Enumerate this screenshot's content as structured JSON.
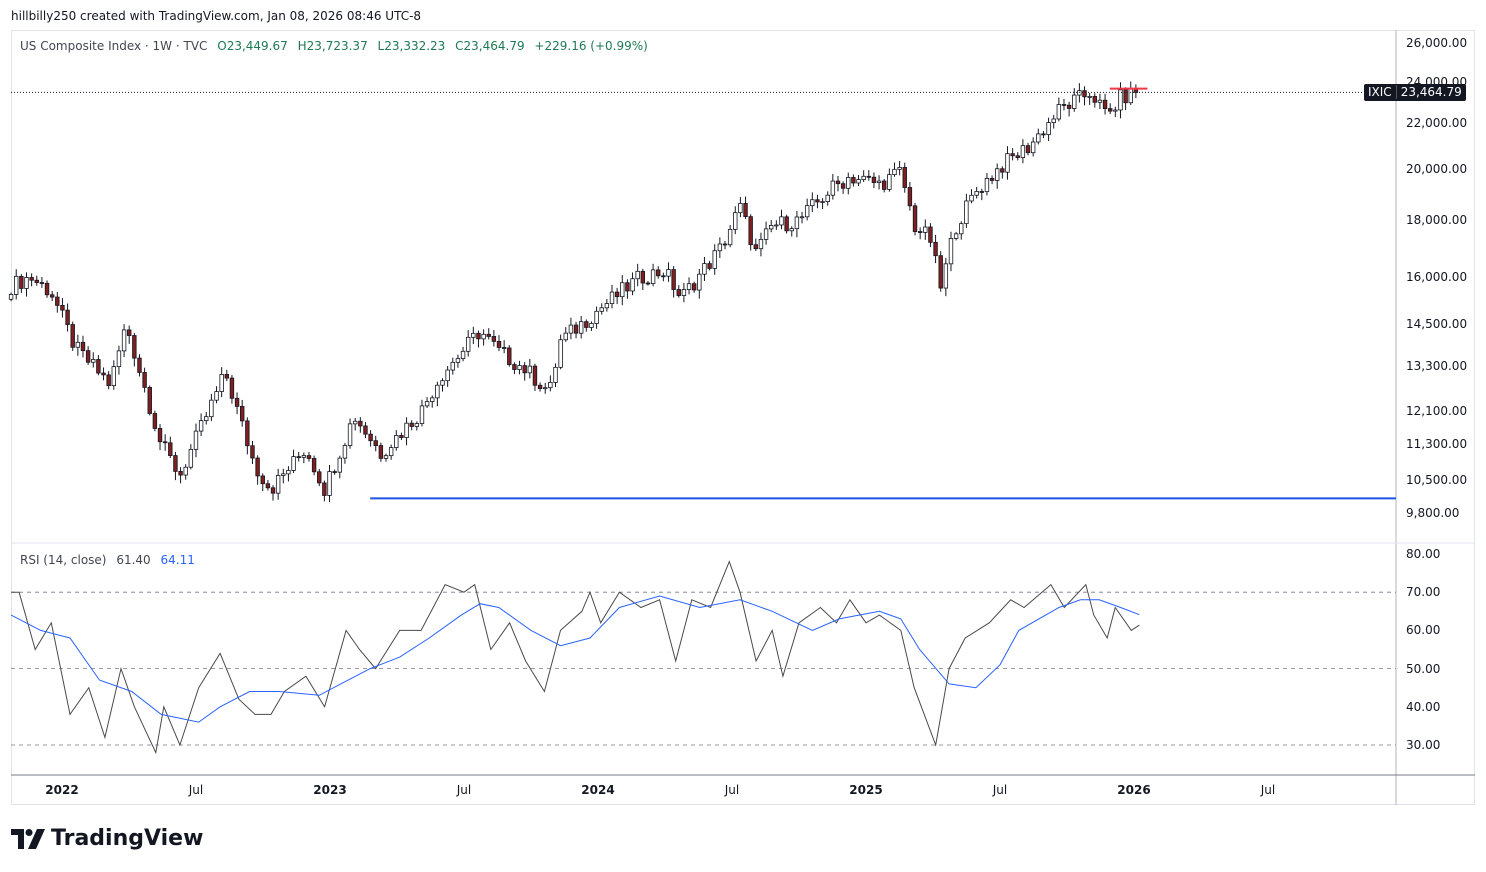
{
  "caption": "hillbilly250 created with TradingView.com, Jan 08, 2026 08:46 UTC-8",
  "legend": {
    "title": "US Composite Index · 1W · TVC",
    "open": "O23,449.67",
    "high": "H23,723.37",
    "low": "L23,332.23",
    "close": "C23,464.79",
    "change": "+229.16 (+0.99%)"
  },
  "price_badge": {
    "symbol": "IXIC",
    "value": "23,464.79"
  },
  "rsi_legend": {
    "label": "RSI (14, close)",
    "rsi": "61.40",
    "ma": "64.11"
  },
  "logo": {
    "text": "TradingView"
  },
  "colors": {
    "up": "#ffffff",
    "down": "#7f1f1f",
    "wick": "#131722",
    "rsi": "#4a4a4a",
    "rsi_ma": "#2962ff",
    "hline": "#1e53e5",
    "red_line": "#f23645"
  },
  "chart_data": [
    {
      "type": "candlestick",
      "title": "US Composite Index · 1W · TVC",
      "scale": "log",
      "ylim": [
        9500,
        26500
      ],
      "xlim": [
        2021.81,
        2027.0
      ],
      "y_ticks": [
        "26,000.00",
        "24,000.00",
        "22,000.00",
        "20,000.00",
        "18,000.00",
        "16,000.00",
        "14,500.00",
        "13,300.00",
        "12,100.00",
        "11,300.00",
        "10,500.00",
        "9,800.00"
      ],
      "y_tick_values": [
        26000,
        24000,
        22000,
        20000,
        18000,
        16000,
        14500,
        13300,
        12100,
        11300,
        10500,
        9800
      ],
      "x_ticks": [
        {
          "label": "2022",
          "t": 2022.0,
          "year": true
        },
        {
          "label": "Jul",
          "t": 2022.5
        },
        {
          "label": "2023",
          "t": 2023.0,
          "year": true
        },
        {
          "label": "Jul",
          "t": 2023.5
        },
        {
          "label": "2024",
          "t": 2024.0,
          "year": true
        },
        {
          "label": "Jul",
          "t": 2024.5
        },
        {
          "label": "2025",
          "t": 2025.0,
          "year": true
        },
        {
          "label": "Jul",
          "t": 2025.5
        },
        {
          "label": "2026",
          "t": 2026.0,
          "year": true
        },
        {
          "label": "Jul",
          "t": 2026.5
        }
      ],
      "weekly_close_path_approx": [
        [
          2021.81,
          15700
        ],
        [
          2021.88,
          16000
        ],
        [
          2021.96,
          15500
        ],
        [
          2022.05,
          13800
        ],
        [
          2022.18,
          12800
        ],
        [
          2022.24,
          14500
        ],
        [
          2022.37,
          11300
        ],
        [
          2022.44,
          10600
        ],
        [
          2022.61,
          13100
        ],
        [
          2022.72,
          10800
        ],
        [
          2022.78,
          10300
        ],
        [
          2022.91,
          11200
        ],
        [
          2022.98,
          10300
        ],
        [
          2023.09,
          12000
        ],
        [
          2023.19,
          11100
        ],
        [
          2023.34,
          12100
        ],
        [
          2023.41,
          13000
        ],
        [
          2023.56,
          14300
        ],
        [
          2023.63,
          13700
        ],
        [
          2023.73,
          13200
        ],
        [
          2023.82,
          12600
        ],
        [
          2023.86,
          14000
        ],
        [
          2024.01,
          15000
        ],
        [
          2024.1,
          15600
        ],
        [
          2024.16,
          16000
        ],
        [
          2024.25,
          16200
        ],
        [
          2024.31,
          15300
        ],
        [
          2024.46,
          17000
        ],
        [
          2024.53,
          18500
        ],
        [
          2024.59,
          16800
        ],
        [
          2024.65,
          17800
        ],
        [
          2024.75,
          18000
        ],
        [
          2024.87,
          19200
        ],
        [
          2024.94,
          19700
        ],
        [
          2025.05,
          19400
        ],
        [
          2025.13,
          19900
        ],
        [
          2025.18,
          17800
        ],
        [
          2025.24,
          17300
        ],
        [
          2025.28,
          15600
        ],
        [
          2025.33,
          17700
        ],
        [
          2025.41,
          19100
        ],
        [
          2025.5,
          20100
        ],
        [
          2025.61,
          21000
        ],
        [
          2025.72,
          22600
        ],
        [
          2025.84,
          23500
        ],
        [
          2025.9,
          22300
        ],
        [
          2025.95,
          23200
        ],
        [
          2026.01,
          23464.79
        ]
      ],
      "last_price": 23464.79,
      "horizontal_lines": [
        {
          "price": 10100,
          "from_t": 2023.15,
          "color": "#1e53e5"
        },
        {
          "price": 23650,
          "from_t": 2025.91,
          "to_t": 2026.05,
          "color": "#f23645"
        }
      ]
    },
    {
      "type": "line",
      "title": "RSI (14, close)",
      "ylim": [
        25,
        82
      ],
      "y_ticks": [
        "80.00",
        "70.00",
        "60.00",
        "50.00",
        "40.00",
        "30.00"
      ],
      "y_tick_values": [
        80,
        70,
        60,
        50,
        40,
        30
      ],
      "bands": [
        70,
        50,
        30
      ],
      "series": [
        {
          "name": "RSI",
          "value_last": 61.4,
          "points": [
            [
              2021.81,
              70
            ],
            [
              2021.84,
              70
            ],
            [
              2021.9,
              55
            ],
            [
              2021.96,
              62
            ],
            [
              2022.03,
              38
            ],
            [
              2022.1,
              45
            ],
            [
              2022.16,
              32
            ],
            [
              2022.22,
              50
            ],
            [
              2022.27,
              40
            ],
            [
              2022.35,
              28
            ],
            [
              2022.38,
              40
            ],
            [
              2022.44,
              30
            ],
            [
              2022.51,
              45
            ],
            [
              2022.59,
              54
            ],
            [
              2022.66,
              42
            ],
            [
              2022.72,
              38
            ],
            [
              2022.78,
              38
            ],
            [
              2022.83,
              44
            ],
            [
              2022.91,
              48
            ],
            [
              2022.98,
              40
            ],
            [
              2023.06,
              60
            ],
            [
              2023.11,
              55
            ],
            [
              2023.17,
              50
            ],
            [
              2023.26,
              60
            ],
            [
              2023.34,
              60
            ],
            [
              2023.43,
              72
            ],
            [
              2023.5,
              70
            ],
            [
              2023.54,
              72
            ],
            [
              2023.6,
              55
            ],
            [
              2023.67,
              62
            ],
            [
              2023.73,
              52
            ],
            [
              2023.8,
              44
            ],
            [
              2023.86,
              60
            ],
            [
              2023.94,
              65
            ],
            [
              2023.97,
              70
            ],
            [
              2024.01,
              62
            ],
            [
              2024.08,
              70
            ],
            [
              2024.16,
              66
            ],
            [
              2024.23,
              68
            ],
            [
              2024.29,
              52
            ],
            [
              2024.35,
              68
            ],
            [
              2024.42,
              66
            ],
            [
              2024.49,
              78
            ],
            [
              2024.53,
              70
            ],
            [
              2024.59,
              52
            ],
            [
              2024.65,
              60
            ],
            [
              2024.69,
              48
            ],
            [
              2024.75,
              62
            ],
            [
              2024.83,
              66
            ],
            [
              2024.89,
              62
            ],
            [
              2024.94,
              68
            ],
            [
              2025.0,
              62
            ],
            [
              2025.05,
              64
            ],
            [
              2025.13,
              60
            ],
            [
              2025.18,
              45
            ],
            [
              2025.26,
              30
            ],
            [
              2025.31,
              50
            ],
            [
              2025.37,
              58
            ],
            [
              2025.46,
              62
            ],
            [
              2025.54,
              68
            ],
            [
              2025.59,
              66
            ],
            [
              2025.69,
              72
            ],
            [
              2025.74,
              66
            ],
            [
              2025.82,
              72
            ],
            [
              2025.85,
              64
            ],
            [
              2025.9,
              58
            ],
            [
              2025.93,
              66
            ],
            [
              2025.99,
              60
            ],
            [
              2026.02,
              61.4
            ]
          ]
        },
        {
          "name": "RSI-based MA",
          "value_last": 64.11,
          "points": [
            [
              2021.81,
              64
            ],
            [
              2021.92,
              60
            ],
            [
              2022.03,
              58
            ],
            [
              2022.14,
              47
            ],
            [
              2022.26,
              44
            ],
            [
              2022.37,
              38
            ],
            [
              2022.44,
              37
            ],
            [
              2022.51,
              36
            ],
            [
              2022.59,
              40
            ],
            [
              2022.7,
              44
            ],
            [
              2022.81,
              44
            ],
            [
              2022.96,
              43
            ],
            [
              2023.04,
              46
            ],
            [
              2023.15,
              50
            ],
            [
              2023.26,
              53
            ],
            [
              2023.37,
              58
            ],
            [
              2023.49,
              64
            ],
            [
              2023.56,
              67
            ],
            [
              2023.63,
              66
            ],
            [
              2023.75,
              60
            ],
            [
              2023.86,
              56
            ],
            [
              2023.97,
              58
            ],
            [
              2024.08,
              66
            ],
            [
              2024.23,
              69
            ],
            [
              2024.38,
              66
            ],
            [
              2024.53,
              68
            ],
            [
              2024.65,
              65
            ],
            [
              2024.8,
              60
            ],
            [
              2024.9,
              63
            ],
            [
              2025.05,
              65
            ],
            [
              2025.13,
              63
            ],
            [
              2025.2,
              55
            ],
            [
              2025.31,
              46
            ],
            [
              2025.41,
              45
            ],
            [
              2025.5,
              51
            ],
            [
              2025.57,
              60
            ],
            [
              2025.72,
              66
            ],
            [
              2025.8,
              68
            ],
            [
              2025.87,
              68
            ],
            [
              2025.95,
              66
            ],
            [
              2026.02,
              64.11
            ]
          ]
        }
      ]
    }
  ]
}
